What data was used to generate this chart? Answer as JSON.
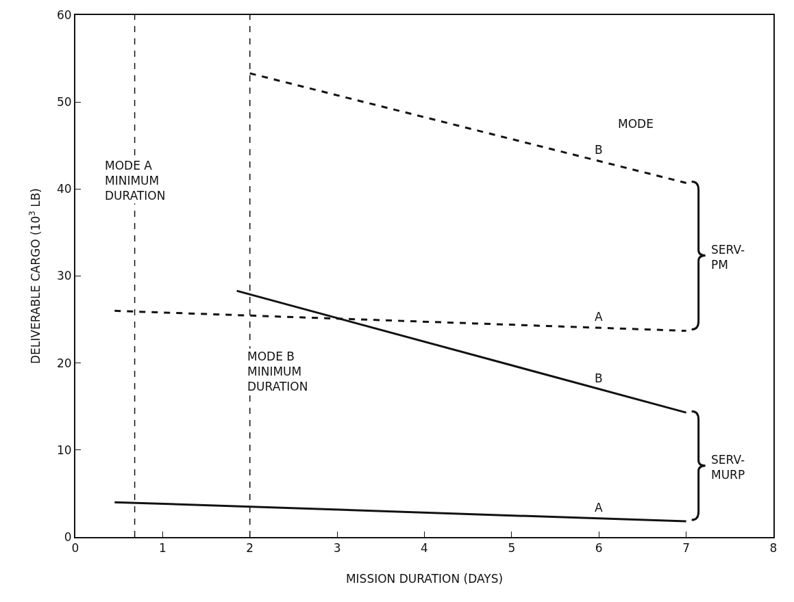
{
  "chart_data": {
    "type": "line",
    "xlabel": "MISSION DURATION (DAYS)",
    "ylabel": "DELIVERABLE CARGO (10$^{3}$ LB)",
    "xlim": [
      0,
      8
    ],
    "xticks": [
      0,
      1,
      2,
      3,
      4,
      5,
      6,
      7,
      8
    ],
    "ylim": [
      0,
      60
    ],
    "yticks": [
      0,
      10,
      20,
      30,
      40,
      50,
      60
    ],
    "grid": false,
    "legend": false,
    "marker": "none",
    "series": [
      {
        "name": "B",
        "color": "#111111",
        "line_style": "dashed",
        "x": [
          2,
          7
        ],
        "values": [
          53.3,
          40.7
        ]
      },
      {
        "name": "A",
        "color": "#111111",
        "line_style": "dashed",
        "x": [
          0.45,
          7
        ],
        "values": [
          26,
          23.7
        ]
      },
      {
        "name": "B",
        "color": "#111111",
        "line_style": "solid",
        "x": [
          1.85,
          7
        ],
        "values": [
          28.3,
          14.3
        ]
      },
      {
        "name": "A",
        "color": "#111111",
        "line_style": "solid",
        "x": [
          0.45,
          7
        ],
        "values": [
          4,
          1.8
        ]
      }
    ],
    "ref_lines": [
      {
        "axis": "x",
        "value": 0.68,
        "label": "MODE A\nMINIMUM\nDURATION",
        "line_style": "dashed",
        "color": "#111111"
      },
      {
        "axis": "x",
        "value": 2,
        "label": "MODE B\nMINIMUM\nDURATION",
        "line_style": "dashed",
        "color": "#111111"
      }
    ],
    "annotations": [
      "MODE",
      "SERV-\nPM",
      "SERV-\nMURP"
    ]
  }
}
